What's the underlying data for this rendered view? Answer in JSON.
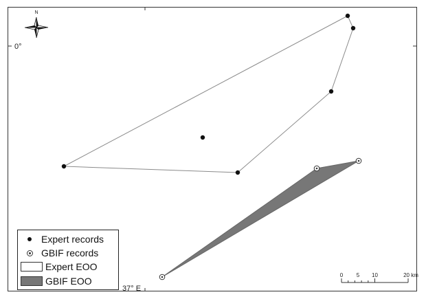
{
  "labels": {
    "north": "N",
    "latitude": "0°",
    "longitude": "37° E"
  },
  "legend": {
    "expert_records": "Expert records",
    "gbif_records": "GBIF records",
    "expert_eoo": "Expert EOO",
    "gbif_eoo": "GBIF EOO"
  },
  "scale_bar": {
    "ticks": [
      "0",
      "5",
      "10",
      "20 km"
    ]
  },
  "colors": {
    "expert_eoo_fill": "#ffffff",
    "gbif_eoo_fill": "#777777",
    "outline": "#8a8a8a",
    "point": "#111111"
  }
}
